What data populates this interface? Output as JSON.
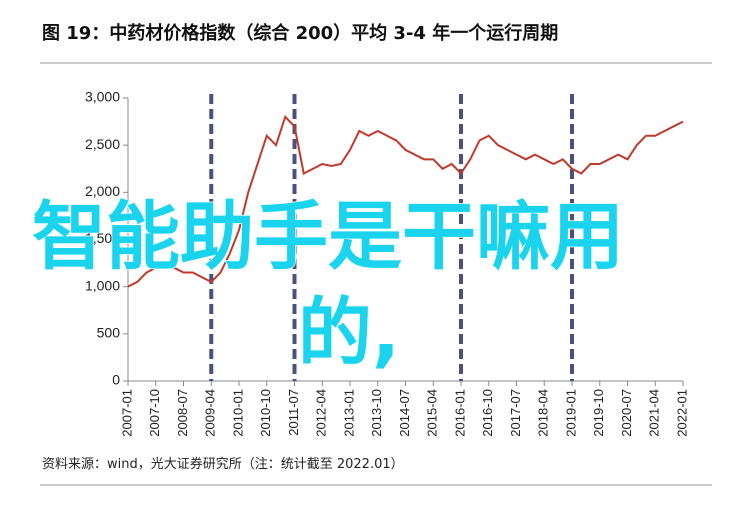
{
  "chart_data": {
    "type": "line",
    "title": "图 19：中药材价格指数（综合 200）平均 3-4 年一个运行周期",
    "source": "资料来源：wind，光大证券研究所（注：统计截至 2022.01）",
    "categories": [
      "2007-01",
      "2007-10",
      "2008-07",
      "2009-04",
      "2010-01",
      "2010-10",
      "2011-07",
      "2012-04",
      "2013-01",
      "2013-10",
      "2014-07",
      "2015-04",
      "2016-01",
      "2016-10",
      "2017-07",
      "2018-04",
      "2019-01",
      "2019-10",
      "2020-07",
      "2021-04",
      "2022-01"
    ],
    "cycle_lines": [
      "2009-04",
      "2011-07",
      "2016-01",
      "2019-01"
    ],
    "cycle_line_color": "#4a5080",
    "x": [
      "2007-01",
      "2007-04",
      "2007-07",
      "2007-10",
      "2008-01",
      "2008-04",
      "2008-07",
      "2008-10",
      "2009-01",
      "2009-04",
      "2009-07",
      "2009-10",
      "2010-01",
      "2010-04",
      "2010-07",
      "2010-10",
      "2011-01",
      "2011-04",
      "2011-07",
      "2011-10",
      "2012-01",
      "2012-04",
      "2012-07",
      "2012-10",
      "2013-01",
      "2013-04",
      "2013-07",
      "2013-10",
      "2014-01",
      "2014-04",
      "2014-07",
      "2014-10",
      "2015-01",
      "2015-04",
      "2015-07",
      "2015-10",
      "2016-01",
      "2016-04",
      "2016-07",
      "2016-10",
      "2017-01",
      "2017-04",
      "2017-07",
      "2017-10",
      "2018-01",
      "2018-04",
      "2018-07",
      "2018-10",
      "2019-01",
      "2019-04",
      "2019-07",
      "2019-10",
      "2020-01",
      "2020-04",
      "2020-07",
      "2020-10",
      "2021-01",
      "2021-04",
      "2021-07",
      "2021-10",
      "2022-01"
    ],
    "series": [
      {
        "color": "#c0392b",
        "values": [
          1000,
          1050,
          1150,
          1200,
          1250,
          1200,
          1150,
          1150,
          1100,
          1050,
          1150,
          1350,
          1600,
          2000,
          2300,
          2600,
          2500,
          2800,
          2700,
          2200,
          2250,
          2300,
          2280,
          2300,
          2450,
          2650,
          2600,
          2650,
          2600,
          2550,
          2450,
          2400,
          2350,
          2350,
          2250,
          2300,
          2200,
          2350,
          2550,
          2600,
          2500,
          2450,
          2400,
          2350,
          2400,
          2350,
          2300,
          2350,
          2250,
          2200,
          2300,
          2300,
          2350,
          2400,
          2350,
          2500,
          2600,
          2600,
          2650,
          2700,
          2750
        ]
      }
    ],
    "ylim": [
      0,
      3000
    ],
    "yticks": [
      0,
      500,
      {
        "value": 1000,
        "label": "1,000"
      },
      {
        "value": 1500,
        "label": "1,500"
      },
      {
        "value": 2000,
        "label": "2,000"
      },
      {
        "value": 2500,
        "label": "2,500"
      },
      {
        "value": 3000,
        "label": "3,000"
      }
    ],
    "overlay": [
      "智能助手是干嘛用",
      "的,"
    ]
  }
}
